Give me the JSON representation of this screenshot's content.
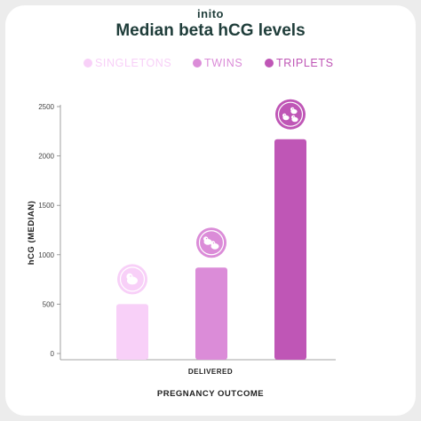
{
  "brand": "inito",
  "chart_data": {
    "type": "bar",
    "title": "Median beta hCG levels",
    "xlabel": "PREGNANCY OUTCOME",
    "ylabel": "hCG (MEDIAN)",
    "categories": [
      "DELIVERED"
    ],
    "series": [
      {
        "name": "SINGLETONS",
        "values": [
          500
        ],
        "color": "#f8d0f8",
        "icon": "single-embryo-icon"
      },
      {
        "name": "TWINS",
        "values": [
          870
        ],
        "color": "#db8cd8",
        "icon": "twin-embryos-icon"
      },
      {
        "name": "TRIPLETS",
        "values": [
          2170
        ],
        "color": "#bf56b6",
        "icon": "triple-embryos-icon"
      }
    ],
    "yticks": [
      0,
      500,
      1000,
      1500,
      2000,
      2500
    ],
    "ylim": [
      0,
      2500
    ],
    "grid": false,
    "legend_position": "top"
  }
}
